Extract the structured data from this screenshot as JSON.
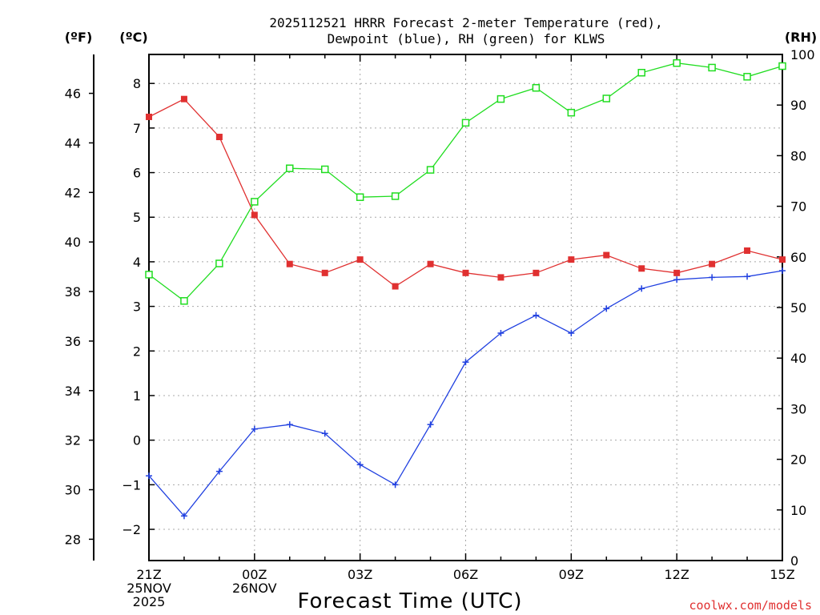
{
  "chart_data": {
    "type": "line",
    "title_lines": [
      "2025112521 HRRR Forecast 2-meter Temperature (red),",
      "Dewpoint (blue), RH (green) for KLWS"
    ],
    "xlabel": "Forecast Time (UTC)",
    "credit": "coolwx.com/models",
    "units": {
      "fahrenheit": "(ºF)",
      "celsius": "(ºC)",
      "rh": "(RH)"
    },
    "x_hours": [
      0,
      1,
      2,
      3,
      4,
      5,
      6,
      7,
      8,
      9,
      10,
      11,
      12,
      13,
      14,
      15,
      16,
      17,
      18
    ],
    "x_tick_hours": [
      0,
      3,
      6,
      9,
      12,
      15,
      18
    ],
    "x_tick_labels": [
      [
        "21Z",
        "25NOV",
        "2025"
      ],
      [
        "00Z",
        "26NOV"
      ],
      [
        "03Z"
      ],
      [
        "06Z"
      ],
      [
        "09Z"
      ],
      [
        "12Z"
      ],
      [
        "15Z"
      ]
    ],
    "xlim": [
      0,
      18
    ],
    "ylim_celsius": [
      -2.7,
      8.65
    ],
    "ylim_rh": [
      0,
      100
    ],
    "y_ticks_celsius": [
      -2,
      -1,
      0,
      1,
      2,
      3,
      4,
      5,
      6,
      7,
      8
    ],
    "y_ticks_fahrenheit": [
      28,
      30,
      32,
      34,
      36,
      38,
      40,
      42,
      44,
      46
    ],
    "y_ticks_rh": [
      0,
      10,
      20,
      30,
      40,
      50,
      60,
      70,
      80,
      90,
      100
    ],
    "grid": true,
    "series": [
      {
        "name": "Temperature",
        "axis": "celsius",
        "color": "#e03030",
        "marker": "filled-square",
        "values": [
          7.25,
          7.65,
          6.8,
          5.05,
          3.95,
          3.75,
          4.05,
          3.45,
          3.95,
          3.75,
          3.65,
          3.75,
          4.05,
          4.15,
          3.85,
          3.75,
          3.95,
          4.25,
          4.05
        ]
      },
      {
        "name": "Dewpoint",
        "axis": "celsius",
        "color": "#2040e0",
        "marker": "plus",
        "values": [
          -0.8,
          -1.7,
          -0.7,
          0.25,
          0.35,
          0.15,
          -0.55,
          -1.0,
          0.35,
          1.75,
          2.4,
          2.8,
          2.4,
          2.95,
          3.4,
          3.6,
          3.65,
          3.67,
          3.8
        ]
      },
      {
        "name": "RH",
        "axis": "rh",
        "color": "#20dd20",
        "marker": "open-square",
        "values": [
          56.5,
          51.3,
          58.7,
          70.9,
          77.5,
          77.3,
          71.8,
          72.0,
          77.2,
          86.5,
          91.2,
          93.4,
          88.5,
          91.3,
          96.4,
          98.3,
          97.4,
          95.6,
          97.7
        ]
      }
    ]
  }
}
